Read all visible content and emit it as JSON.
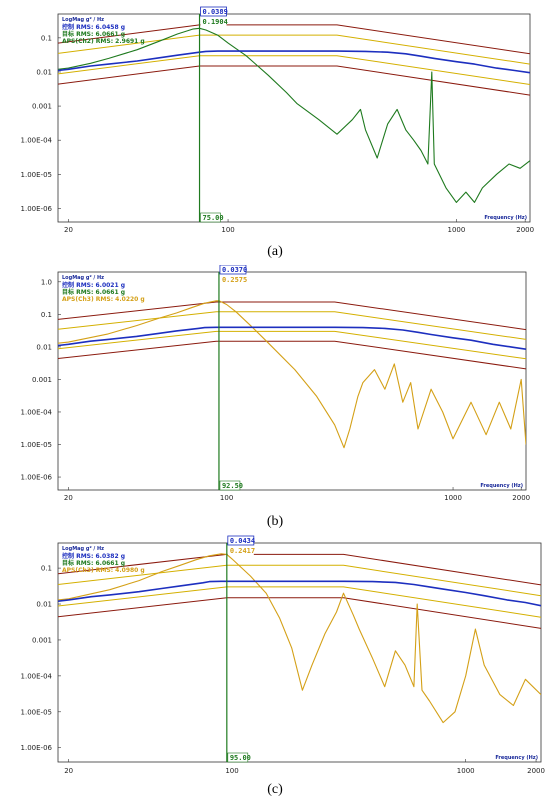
{
  "chart_data": [
    {
      "type": "line",
      "panel_caption": "(a)",
      "ylabel": "LogMag g² / Hz",
      "xlabel": "Frequency (Hz)",
      "x_scale": "log",
      "y_scale": "log",
      "xlim": [
        18,
        2100
      ],
      "ylim": [
        4e-07,
        0.5
      ],
      "x_ticks": [
        "20",
        "100",
        "1000",
        "2000"
      ],
      "y_ticks": [
        "0.1",
        "0.01",
        "0.001",
        "1.00E-04",
        "1.00E-05",
        "1.00E-06"
      ],
      "legend": [
        {
          "text": "控制 RMS: 6.0458 g",
          "color": "#1d2fbf"
        },
        {
          "text": "目标 RMS: 6.0661 g",
          "color": "#1f7a1f"
        },
        {
          "text": "APS(Ch2) RMS: 2.9691 g",
          "color": "#1f7a1f"
        }
      ],
      "cursor": {
        "x": 75,
        "x_label": "75.00",
        "values": [
          "0.0389",
          "0.1904"
        ],
        "color": "#1f7a1f"
      },
      "series": [
        {
          "name": "控制",
          "color": "#1d2fbf",
          "x": [
            18,
            20,
            25,
            30,
            40,
            50,
            60,
            75,
            80,
            90,
            100,
            150,
            200,
            300,
            400,
            500,
            600,
            700,
            800,
            1000,
            1200,
            1500,
            1800,
            2100
          ],
          "y": [
            0.011,
            0.012,
            0.015,
            0.017,
            0.021,
            0.026,
            0.031,
            0.038,
            0.04,
            0.041,
            0.041,
            0.041,
            0.041,
            0.041,
            0.04,
            0.038,
            0.034,
            0.029,
            0.025,
            0.02,
            0.017,
            0.013,
            0.011,
            0.0095
          ]
        },
        {
          "name": "APS(Ch2)",
          "color": "#1f7a1f",
          "x": [
            18,
            20,
            25,
            30,
            40,
            50,
            60,
            70,
            75,
            80,
            90,
            100,
            120,
            150,
            180,
            200,
            250,
            300,
            350,
            380,
            400,
            450,
            500,
            550,
            600,
            650,
            700,
            750,
            780,
            800,
            900,
            1000,
            1100,
            1200,
            1300,
            1500,
            1700,
            1900,
            2100
          ],
          "y": [
            0.012,
            0.013,
            0.018,
            0.025,
            0.045,
            0.08,
            0.13,
            0.18,
            0.19,
            0.17,
            0.12,
            0.07,
            0.03,
            0.008,
            0.0025,
            0.0012,
            0.0004,
            0.00015,
            0.0004,
            0.0008,
            0.0002,
            3e-05,
            0.0003,
            0.0008,
            0.0002,
            0.0001,
            5e-05,
            2e-05,
            0.01,
            2e-05,
            4e-06,
            1.5e-06,
            3e-06,
            1.5e-06,
            4e-06,
            1e-05,
            2e-05,
            1.5e-05,
            2.5e-05
          ]
        }
      ],
      "abort_upper": {
        "x": [
          18,
          75,
          300,
          2100
        ],
        "y": [
          0.07,
          0.24,
          0.24,
          0.034
        ]
      },
      "alarm_upper": {
        "x": [
          18,
          75,
          300,
          2100
        ],
        "y": [
          0.035,
          0.12,
          0.12,
          0.017
        ]
      },
      "alarm_lower": {
        "x": [
          18,
          75,
          300,
          2100
        ],
        "y": [
          0.0088,
          0.03,
          0.03,
          0.0043
        ]
      },
      "abort_lower": {
        "x": [
          18,
          75,
          300,
          2100
        ],
        "y": [
          0.0044,
          0.015,
          0.015,
          0.0021
        ]
      }
    },
    {
      "type": "line",
      "panel_caption": "(b)",
      "ylabel": "LogMag g² / Hz",
      "xlabel": "Frequency (Hz)",
      "x_scale": "log",
      "y_scale": "log",
      "xlim": [
        18,
        2100
      ],
      "ylim": [
        4e-07,
        2
      ],
      "x_ticks": [
        "20",
        "100",
        "1000",
        "2000"
      ],
      "y_ticks": [
        "1.0",
        "0.1",
        "0.01",
        "0.001",
        "1.00E-04",
        "1.00E-05",
        "1.00E-06"
      ],
      "legend": [
        {
          "text": "控制 RMS: 6.0021 g",
          "color": "#1d2fbf"
        },
        {
          "text": "目标 RMS: 6.0661 g",
          "color": "#1f7a1f"
        },
        {
          "text": "APS(Ch3) RMS: 4.0220 g",
          "color": "#d4a017"
        }
      ],
      "cursor": {
        "x": 92.5,
        "x_label": "92.50",
        "values": [
          "0.0370",
          "0.2575"
        ],
        "color": "#1f7a1f"
      },
      "series": [
        {
          "name": "控制",
          "color": "#1d2fbf",
          "x": [
            18,
            20,
            25,
            30,
            40,
            50,
            60,
            75,
            80,
            90,
            100,
            150,
            200,
            300,
            400,
            500,
            600,
            700,
            800,
            1000,
            1200,
            1500,
            1800,
            2100
          ],
          "y": [
            0.011,
            0.012,
            0.015,
            0.017,
            0.021,
            0.026,
            0.031,
            0.037,
            0.039,
            0.04,
            0.04,
            0.04,
            0.04,
            0.04,
            0.039,
            0.037,
            0.033,
            0.028,
            0.024,
            0.019,
            0.016,
            0.012,
            0.01,
            0.0085
          ]
        },
        {
          "name": "APS(Ch3)",
          "color": "#d4a017",
          "x": [
            18,
            20,
            30,
            40,
            50,
            60,
            70,
            80,
            90,
            92.5,
            100,
            110,
            130,
            150,
            200,
            250,
            300,
            330,
            350,
            380,
            400,
            450,
            500,
            550,
            600,
            650,
            700,
            800,
            900,
            1000,
            1200,
            1400,
            1600,
            1800,
            2000,
            2100
          ],
          "y": [
            0.013,
            0.014,
            0.025,
            0.045,
            0.075,
            0.11,
            0.16,
            0.22,
            0.26,
            0.26,
            0.2,
            0.12,
            0.04,
            0.015,
            0.002,
            0.0003,
            4e-05,
            8e-06,
            3e-05,
            0.0003,
            0.0008,
            0.002,
            0.0005,
            0.003,
            0.0002,
            0.0008,
            3e-05,
            0.0005,
            0.0001,
            1.5e-05,
            0.0002,
            2e-05,
            0.0002,
            3e-05,
            0.001,
            1e-05
          ]
        }
      ],
      "abort_upper": {
        "x": [
          18,
          90,
          300,
          2100
        ],
        "y": [
          0.07,
          0.24,
          0.24,
          0.034
        ]
      },
      "alarm_upper": {
        "x": [
          18,
          90,
          300,
          2100
        ],
        "y": [
          0.035,
          0.12,
          0.12,
          0.017
        ]
      },
      "alarm_lower": {
        "x": [
          18,
          90,
          300,
          2100
        ],
        "y": [
          0.0088,
          0.03,
          0.03,
          0.0043
        ]
      },
      "abort_lower": {
        "x": [
          18,
          90,
          300,
          2100
        ],
        "y": [
          0.0044,
          0.015,
          0.015,
          0.0021
        ]
      }
    },
    {
      "type": "line",
      "panel_caption": "(c)",
      "ylabel": "LogMag g² / Hz",
      "xlabel": "Frequency (Hz)",
      "x_scale": "log",
      "y_scale": "log",
      "xlim": [
        18,
        2100
      ],
      "ylim": [
        4e-07,
        0.5
      ],
      "x_ticks": [
        "20",
        "100",
        "1000",
        "2000"
      ],
      "y_ticks": [
        "0.1",
        "0.01",
        "0.001",
        "1.00E-04",
        "1.00E-05",
        "1.00E-06"
      ],
      "legend": [
        {
          "text": "控制 RMS: 6.0382 g",
          "color": "#1d2fbf"
        },
        {
          "text": "目标 RMS: 6.0661 g",
          "color": "#1f7a1f"
        },
        {
          "text": "APS(Ch3) RMS: 4.0980 g",
          "color": "#d4a017"
        }
      ],
      "cursor": {
        "x": 95,
        "x_label": "95.00",
        "values": [
          "0.0434",
          "0.2417"
        ],
        "color": "#1f7a1f"
      },
      "series": [
        {
          "name": "控制",
          "color": "#1d2fbf",
          "x": [
            18,
            20,
            25,
            30,
            40,
            50,
            60,
            75,
            80,
            90,
            100,
            150,
            200,
            300,
            400,
            500,
            600,
            700,
            800,
            1000,
            1200,
            1500,
            1800,
            2100
          ],
          "y": [
            0.012,
            0.013,
            0.016,
            0.018,
            0.022,
            0.027,
            0.032,
            0.039,
            0.042,
            0.043,
            0.043,
            0.043,
            0.043,
            0.043,
            0.042,
            0.04,
            0.035,
            0.03,
            0.026,
            0.021,
            0.017,
            0.013,
            0.011,
            0.009
          ]
        },
        {
          "name": "APS(Ch3)",
          "color": "#d4a017",
          "x": [
            18,
            20,
            30,
            40,
            50,
            60,
            70,
            80,
            90,
            95,
            100,
            120,
            140,
            160,
            180,
            200,
            220,
            250,
            280,
            300,
            330,
            350,
            400,
            450,
            500,
            550,
            600,
            620,
            650,
            700,
            800,
            900,
            1000,
            1100,
            1200,
            1400,
            1600,
            1800,
            2100
          ],
          "y": [
            0.013,
            0.014,
            0.025,
            0.045,
            0.08,
            0.12,
            0.17,
            0.22,
            0.25,
            0.24,
            0.18,
            0.06,
            0.02,
            0.004,
            0.0006,
            4e-05,
            0.0002,
            0.0015,
            0.006,
            0.02,
            0.005,
            0.002,
            0.0003,
            5e-05,
            0.0005,
            0.0002,
            5e-05,
            0.01,
            4e-05,
            2e-05,
            5e-06,
            1e-05,
            0.0001,
            0.002,
            0.0002,
            3e-05,
            1.5e-05,
            8e-05,
            3e-05
          ]
        }
      ],
      "abort_upper": {
        "x": [
          18,
          95,
          300,
          2100
        ],
        "y": [
          0.07,
          0.24,
          0.24,
          0.034
        ]
      },
      "alarm_upper": {
        "x": [
          18,
          95,
          300,
          2100
        ],
        "y": [
          0.035,
          0.12,
          0.12,
          0.017
        ]
      },
      "alarm_lower": {
        "x": [
          18,
          95,
          300,
          2100
        ],
        "y": [
          0.0088,
          0.03,
          0.03,
          0.0043
        ]
      },
      "abort_lower": {
        "x": [
          18,
          95,
          300,
          2100
        ],
        "y": [
          0.0044,
          0.015,
          0.015,
          0.0021
        ]
      }
    }
  ],
  "limit_colors": {
    "abort": "#8b1a0e",
    "alarm": "#d4b000"
  }
}
